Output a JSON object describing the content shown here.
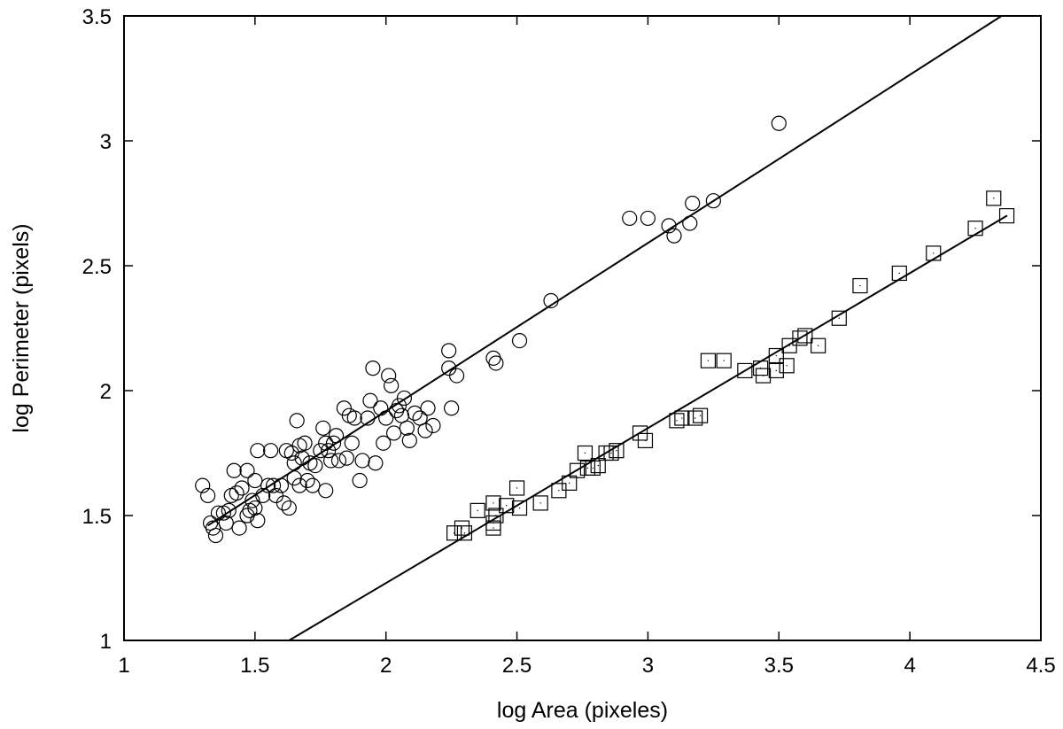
{
  "chart_data": {
    "type": "scatter",
    "title": "",
    "xlabel": "log Area (pixeles)",
    "ylabel": "log Perimeter (pixels)",
    "xlim": [
      1,
      4.5
    ],
    "ylim": [
      1,
      3.5
    ],
    "xticks": [
      "1",
      "1.5",
      "2",
      "2.5",
      "3",
      "3.5",
      "4",
      "4.5"
    ],
    "yticks": [
      "1",
      "1.5",
      "2",
      "2.5",
      "3",
      "3.5"
    ],
    "grid": false,
    "series": [
      {
        "marker": "circle",
        "fit_line": {
          "from": [
            1.32,
            1.46
          ],
          "to": [
            4.35,
            3.5
          ]
        },
        "points": [
          [
            1.3,
            1.62
          ],
          [
            1.32,
            1.58
          ],
          [
            1.33,
            1.47
          ],
          [
            1.34,
            1.45
          ],
          [
            1.35,
            1.42
          ],
          [
            1.36,
            1.51
          ],
          [
            1.38,
            1.51
          ],
          [
            1.39,
            1.47
          ],
          [
            1.4,
            1.52
          ],
          [
            1.41,
            1.58
          ],
          [
            1.42,
            1.68
          ],
          [
            1.43,
            1.59
          ],
          [
            1.44,
            1.45
          ],
          [
            1.45,
            1.61
          ],
          [
            1.47,
            1.68
          ],
          [
            1.47,
            1.5
          ],
          [
            1.48,
            1.52
          ],
          [
            1.49,
            1.56
          ],
          [
            1.5,
            1.64
          ],
          [
            1.5,
            1.53
          ],
          [
            1.51,
            1.76
          ],
          [
            1.51,
            1.48
          ],
          [
            1.53,
            1.58
          ],
          [
            1.55,
            1.62
          ],
          [
            1.56,
            1.76
          ],
          [
            1.57,
            1.62
          ],
          [
            1.58,
            1.58
          ],
          [
            1.6,
            1.62
          ],
          [
            1.61,
            1.55
          ],
          [
            1.62,
            1.76
          ],
          [
            1.63,
            1.53
          ],
          [
            1.64,
            1.75
          ],
          [
            1.65,
            1.71
          ],
          [
            1.65,
            1.65
          ],
          [
            1.66,
            1.88
          ],
          [
            1.67,
            1.78
          ],
          [
            1.67,
            1.62
          ],
          [
            1.68,
            1.73
          ],
          [
            1.69,
            1.79
          ],
          [
            1.7,
            1.64
          ],
          [
            1.71,
            1.71
          ],
          [
            1.72,
            1.62
          ],
          [
            1.73,
            1.7
          ],
          [
            1.75,
            1.76
          ],
          [
            1.76,
            1.85
          ],
          [
            1.77,
            1.79
          ],
          [
            1.77,
            1.6
          ],
          [
            1.78,
            1.76
          ],
          [
            1.79,
            1.72
          ],
          [
            1.8,
            1.79
          ],
          [
            1.81,
            1.82
          ],
          [
            1.82,
            1.72
          ],
          [
            1.84,
            1.93
          ],
          [
            1.85,
            1.73
          ],
          [
            1.86,
            1.9
          ],
          [
            1.87,
            1.79
          ],
          [
            1.88,
            1.89
          ],
          [
            1.9,
            1.64
          ],
          [
            1.91,
            1.72
          ],
          [
            1.93,
            1.89
          ],
          [
            1.94,
            1.96
          ],
          [
            1.95,
            2.09
          ],
          [
            1.96,
            1.71
          ],
          [
            1.98,
            1.93
          ],
          [
            1.99,
            1.79
          ],
          [
            2.0,
            1.89
          ],
          [
            2.01,
            2.06
          ],
          [
            2.02,
            2.02
          ],
          [
            2.03,
            1.83
          ],
          [
            2.04,
            1.92
          ],
          [
            2.05,
            1.94
          ],
          [
            2.06,
            1.9
          ],
          [
            2.07,
            1.97
          ],
          [
            2.08,
            1.85
          ],
          [
            2.09,
            1.8
          ],
          [
            2.11,
            1.91
          ],
          [
            2.13,
            1.89
          ],
          [
            2.15,
            1.84
          ],
          [
            2.16,
            1.93
          ],
          [
            2.18,
            1.86
          ],
          [
            2.24,
            2.09
          ],
          [
            2.24,
            2.16
          ],
          [
            2.25,
            1.93
          ],
          [
            2.27,
            2.06
          ],
          [
            2.41,
            2.13
          ],
          [
            2.42,
            2.11
          ],
          [
            2.51,
            2.2
          ],
          [
            2.63,
            2.36
          ],
          [
            2.93,
            2.69
          ],
          [
            3.0,
            2.69
          ],
          [
            3.08,
            2.66
          ],
          [
            3.1,
            2.62
          ],
          [
            3.16,
            2.67
          ],
          [
            3.17,
            2.75
          ],
          [
            3.25,
            2.76
          ],
          [
            3.5,
            3.07
          ]
        ]
      },
      {
        "marker": "square",
        "fit_line": {
          "from": [
            1.63,
            1.0
          ],
          "to": [
            4.37,
            2.7
          ]
        },
        "points": [
          [
            2.26,
            1.43
          ],
          [
            2.29,
            1.45
          ],
          [
            2.3,
            1.43
          ],
          [
            2.35,
            1.52
          ],
          [
            2.41,
            1.45
          ],
          [
            2.41,
            1.47
          ],
          [
            2.41,
            1.55
          ],
          [
            2.42,
            1.5
          ],
          [
            2.46,
            1.54
          ],
          [
            2.5,
            1.61
          ],
          [
            2.51,
            1.53
          ],
          [
            2.59,
            1.55
          ],
          [
            2.66,
            1.6
          ],
          [
            2.7,
            1.63
          ],
          [
            2.73,
            1.68
          ],
          [
            2.76,
            1.75
          ],
          [
            2.77,
            1.69
          ],
          [
            2.79,
            1.69
          ],
          [
            2.81,
            1.7
          ],
          [
            2.84,
            1.75
          ],
          [
            2.86,
            1.75
          ],
          [
            2.88,
            1.76
          ],
          [
            2.97,
            1.83
          ],
          [
            2.99,
            1.8
          ],
          [
            3.11,
            1.88
          ],
          [
            3.13,
            1.89
          ],
          [
            3.18,
            1.89
          ],
          [
            3.2,
            1.9
          ],
          [
            3.23,
            2.12
          ],
          [
            3.29,
            2.12
          ],
          [
            3.37,
            2.08
          ],
          [
            3.43,
            2.09
          ],
          [
            3.44,
            2.06
          ],
          [
            3.49,
            2.08
          ],
          [
            3.49,
            2.14
          ],
          [
            3.53,
            2.1
          ],
          [
            3.54,
            2.18
          ],
          [
            3.58,
            2.21
          ],
          [
            3.6,
            2.22
          ],
          [
            3.65,
            2.18
          ],
          [
            3.73,
            2.29
          ],
          [
            3.81,
            2.42
          ],
          [
            3.96,
            2.47
          ],
          [
            4.09,
            2.55
          ],
          [
            4.25,
            2.65
          ],
          [
            4.32,
            2.77
          ],
          [
            4.37,
            2.7
          ]
        ]
      }
    ]
  }
}
